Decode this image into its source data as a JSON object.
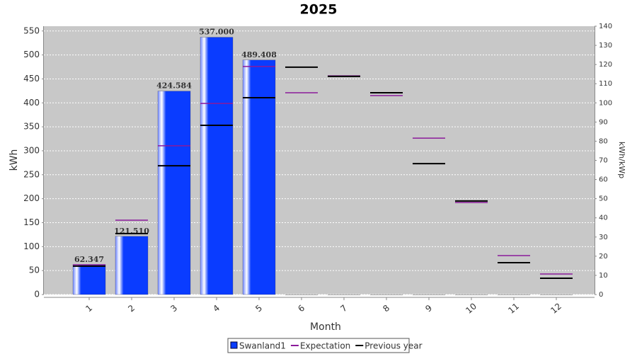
{
  "chart_data": {
    "type": "bar",
    "title": "2025",
    "x_label": "Month",
    "y_label": "kWh",
    "y2_label": "kWh/kWp",
    "categories": [
      "1",
      "2",
      "3",
      "4",
      "5",
      "6",
      "7",
      "8",
      "9",
      "10",
      "11",
      "12"
    ],
    "series": [
      {
        "name": "Swanland1",
        "type": "bar",
        "color": "#0a3cff",
        "values": [
          62.347,
          121.51,
          424.584,
          537,
          489.408,
          0,
          0,
          0,
          0,
          0,
          0,
          0
        ],
        "value_labels": [
          "62.347",
          "121.510",
          "424.584",
          "537.000",
          "489.408",
          null,
          null,
          null,
          null,
          null,
          null,
          null
        ]
      },
      {
        "name": "Expectation",
        "type": "marker",
        "axis": "y2",
        "color": "#8b1a9b",
        "values": [
          15.5,
          38.8,
          77.6,
          99.7,
          119,
          105.3,
          114.1,
          103.8,
          81.6,
          48,
          20.3,
          10.7
        ]
      },
      {
        "name": "Previous year",
        "type": "marker",
        "axis": "y2",
        "color": "#000000",
        "values": [
          14.8,
          31.8,
          67.2,
          88.3,
          102.7,
          118.6,
          113.8,
          105.3,
          68.3,
          48.8,
          16.6,
          8.5
        ]
      }
    ],
    "ylim": [
      0,
      560
    ],
    "yticks": [
      0,
      50,
      100,
      150,
      200,
      250,
      300,
      350,
      400,
      450,
      500,
      550
    ],
    "y2lim": [
      0,
      140
    ],
    "y2ticks": [
      0,
      10,
      20,
      30,
      40,
      50,
      60,
      70,
      80,
      90,
      100,
      110,
      120,
      130,
      140
    ],
    "grid": true
  }
}
